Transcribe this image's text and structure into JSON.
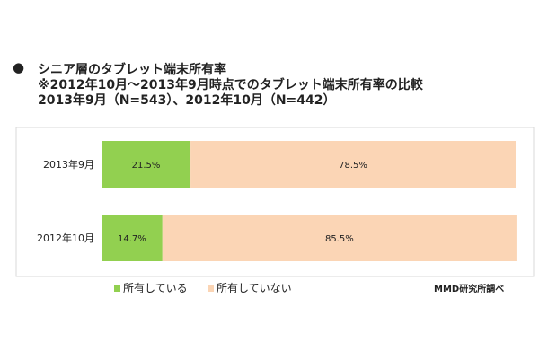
{
  "header": {
    "bullet": "●",
    "title": "シニア層のタブレット端末所有率",
    "subtitle": "※2012年10月～2013年9月時点でのタブレット端末所有率の比較",
    "samples": "2013年9月（N=543）、2012年10月（N=442）"
  },
  "chart_data": {
    "type": "bar",
    "stacked": true,
    "orientation": "horizontal",
    "categories": [
      "2013年9月",
      "2012年10月"
    ],
    "series": [
      {
        "name": "所有している",
        "values": [
          21.5,
          14.7
        ],
        "labels": [
          "21.5%",
          "14.7%"
        ],
        "color": "#92D050"
      },
      {
        "name": "所有していない",
        "values": [
          78.5,
          85.5
        ],
        "labels": [
          "78.5%",
          "85.5%"
        ],
        "color": "#FBD5B5"
      }
    ],
    "xlim": [
      0,
      100
    ],
    "legend_position": "bottom-left"
  },
  "footer": {
    "legend_owned": "所有している",
    "legend_not_owned": "所有していない",
    "credit": "MMD研究所調べ"
  },
  "colors": {
    "owned": "#92D050",
    "not_owned": "#FBD5B5",
    "frame": "#D9D9D9"
  }
}
